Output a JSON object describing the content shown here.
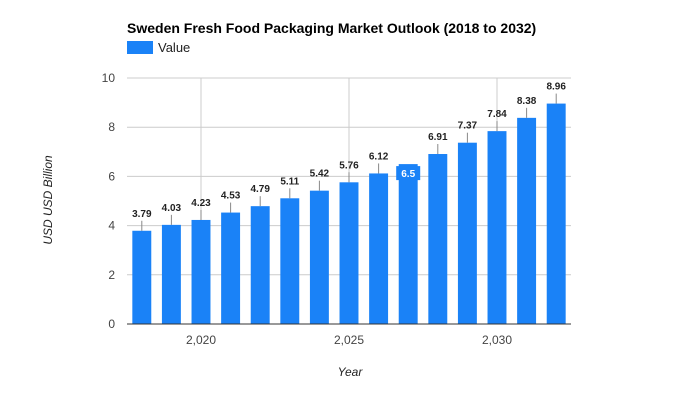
{
  "chart_data": {
    "type": "bar",
    "title": "Sweden Fresh Food Packaging Market Outlook (2018 to 2032)",
    "xlabel": "Year",
    "ylabel": "USD USD Billion",
    "x": [
      2018,
      2019,
      2020,
      2021,
      2022,
      2023,
      2024,
      2025,
      2026,
      2027,
      2028,
      2029,
      2030,
      2031,
      2032
    ],
    "series": [
      {
        "name": "Value",
        "values": [
          3.79,
          4.03,
          4.23,
          4.53,
          4.79,
          5.11,
          5.42,
          5.76,
          6.12,
          6.5,
          6.91,
          7.37,
          7.84,
          8.38,
          8.96
        ],
        "value_labels": [
          "3.79",
          "4.03",
          "4.23",
          "4.53",
          "4.79",
          "5.11",
          "5.42",
          "5.76",
          "6.12",
          "6.5",
          "6.91",
          "7.37",
          "7.84",
          "8.38",
          "8.96"
        ]
      }
    ],
    "ylim": [
      0,
      10
    ],
    "y_ticks": [
      "0",
      "2",
      "4",
      "6",
      "8",
      "10"
    ],
    "x_ticks": [
      {
        "value": 2020,
        "label": "2,020"
      },
      {
        "value": 2025,
        "label": "2,025"
      },
      {
        "value": 2030,
        "label": "2,030"
      }
    ],
    "highlighted_index": 9,
    "grid": true,
    "legend_position": "top-left",
    "colors": {
      "bar": "#1a82f7",
      "highlight_label_bg": "#1a82f7",
      "highlight_label_text": "#ffffff",
      "grid": "#cccccc",
      "axis": "#333333"
    }
  }
}
